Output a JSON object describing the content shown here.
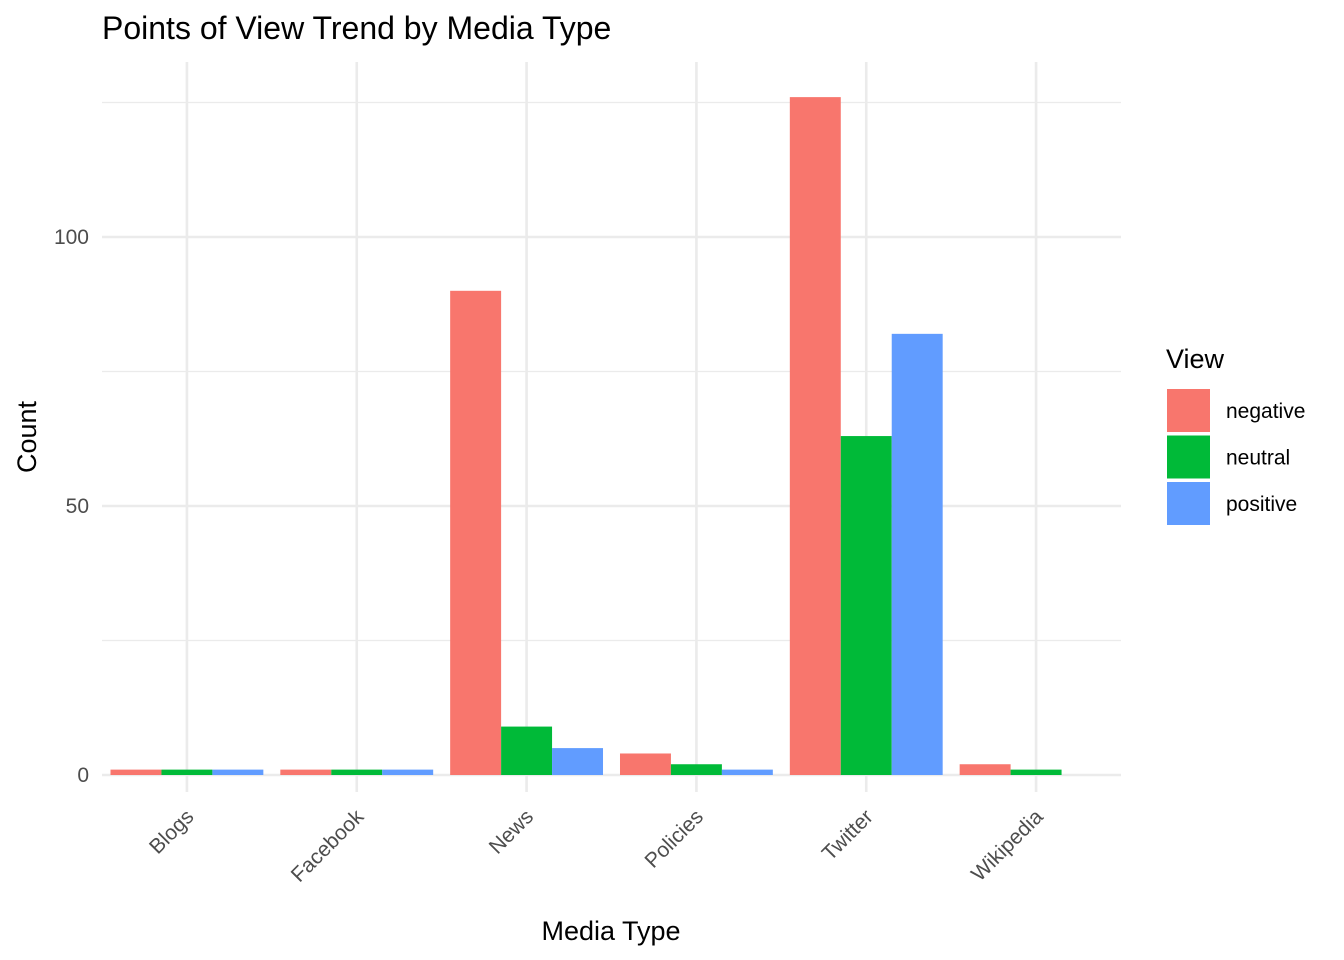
{
  "chart_data": {
    "type": "bar",
    "title": "Points of View Trend by Media Type",
    "xlabel": "Media Type",
    "ylabel": "Count",
    "categories": [
      "Blogs",
      "Facebook",
      "News",
      "Policies",
      "Twitter",
      "Wikipedia"
    ],
    "series": [
      {
        "name": "negative",
        "color": "#F8766D",
        "values": [
          1,
          1,
          90,
          4,
          126,
          2
        ]
      },
      {
        "name": "neutral",
        "color": "#00BA38",
        "values": [
          1,
          1,
          9,
          2,
          63,
          1
        ]
      },
      {
        "name": "positive",
        "color": "#619CFF",
        "values": [
          1,
          1,
          5,
          1,
          82,
          null
        ]
      }
    ],
    "ylim": [
      0,
      126
    ],
    "yticks": [
      0,
      50,
      100
    ],
    "grid": true,
    "legend": {
      "title": "View",
      "position": "right"
    }
  }
}
